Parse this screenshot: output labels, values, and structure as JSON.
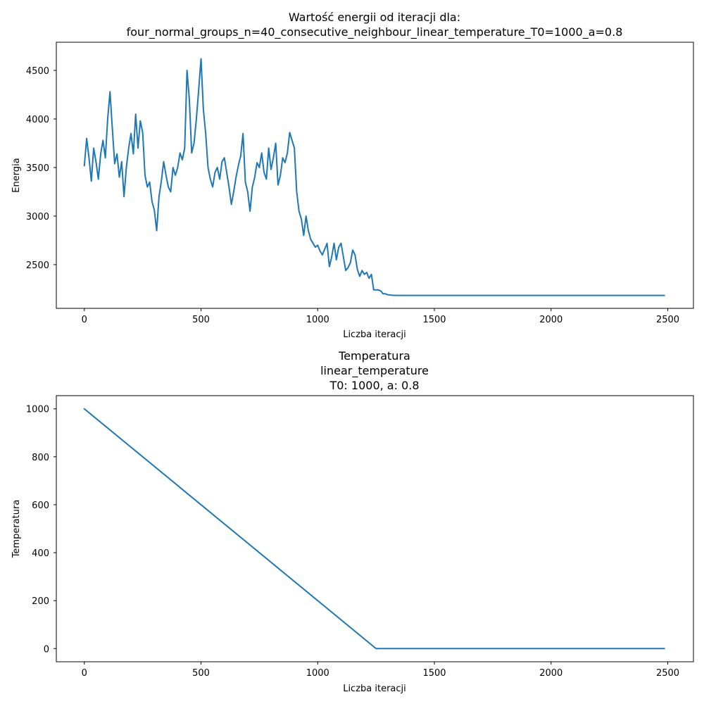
{
  "chart_data": [
    {
      "type": "line",
      "title_lines": [
        "Wartość energii od iteracji dla:",
        "four_normal_groups_n=40_consecutive_neighbour_linear_temperature_T0=1000_a=0.8"
      ],
      "xlabel": "Liczba iteracji",
      "ylabel": "Energia",
      "xlim": [
        -120,
        2610
      ],
      "ylim": [
        2050,
        4790
      ],
      "xticks": [
        0,
        500,
        1000,
        1500,
        2000,
        2500
      ],
      "yticks": [
        2500,
        3000,
        3500,
        4000,
        4500
      ],
      "grid": false,
      "color": "#1f77b4",
      "series": [
        {
          "x": [
            0,
            10,
            20,
            30,
            40,
            50,
            60,
            70,
            80,
            90,
            100,
            110,
            120,
            130,
            140,
            150,
            160,
            170,
            180,
            190,
            200,
            210,
            220,
            230,
            240,
            250,
            260,
            270,
            280,
            290,
            300,
            310,
            320,
            330,
            340,
            350,
            360,
            370,
            380,
            390,
            400,
            410,
            420,
            430,
            440,
            450,
            460,
            470,
            480,
            490,
            500,
            510,
            520,
            530,
            540,
            550,
            560,
            570,
            580,
            590,
            600,
            610,
            620,
            630,
            640,
            650,
            660,
            670,
            680,
            690,
            700,
            710,
            720,
            730,
            740,
            750,
            760,
            770,
            780,
            790,
            800,
            810,
            820,
            830,
            840,
            850,
            860,
            870,
            880,
            890,
            900,
            910,
            920,
            930,
            940,
            950,
            960,
            970,
            980,
            990,
            1000,
            1010,
            1020,
            1030,
            1040,
            1050,
            1060,
            1070,
            1080,
            1090,
            1100,
            1110,
            1120,
            1130,
            1140,
            1150,
            1160,
            1170,
            1180,
            1190,
            1200,
            1210,
            1220,
            1230,
            1240,
            1250,
            1260,
            1270,
            1280,
            1290,
            1300,
            1320,
            1340,
            1400,
            1500,
            1600,
            1700,
            1800,
            1900,
            2000,
            2100,
            2200,
            2300,
            2400,
            2485
          ],
          "y": [
            3520,
            3800,
            3600,
            3360,
            3700,
            3560,
            3380,
            3640,
            3780,
            3600,
            4000,
            4280,
            3900,
            3540,
            3640,
            3400,
            3560,
            3200,
            3500,
            3700,
            3850,
            3640,
            4050,
            3700,
            3980,
            3860,
            3420,
            3300,
            3350,
            3150,
            3060,
            2850,
            3200,
            3360,
            3560,
            3420,
            3300,
            3250,
            3500,
            3420,
            3500,
            3650,
            3580,
            3700,
            4500,
            4200,
            3650,
            3750,
            4000,
            4300,
            4620,
            4100,
            3850,
            3500,
            3380,
            3300,
            3450,
            3500,
            3380,
            3560,
            3600,
            3450,
            3300,
            3120,
            3250,
            3400,
            3520,
            3620,
            3850,
            3350,
            3250,
            3050,
            3300,
            3400,
            3550,
            3500,
            3650,
            3450,
            3380,
            3700,
            3480,
            3600,
            3750,
            3320,
            3420,
            3600,
            3550,
            3650,
            3860,
            3780,
            3700,
            3250,
            3050,
            2970,
            2800,
            3000,
            2850,
            2760,
            2720,
            2680,
            2700,
            2640,
            2600,
            2660,
            2720,
            2480,
            2580,
            2720,
            2550,
            2680,
            2720,
            2580,
            2440,
            2470,
            2520,
            2650,
            2600,
            2450,
            2380,
            2440,
            2400,
            2420,
            2360,
            2400,
            2240,
            2240,
            2240,
            2230,
            2200,
            2200,
            2190,
            2185,
            2183,
            2183,
            2183,
            2183,
            2183,
            2183,
            2183,
            2183,
            2183,
            2183,
            2183,
            2183,
            2183
          ]
        }
      ]
    },
    {
      "type": "line",
      "title_lines": [
        "Temperatura",
        "linear_temperature",
        "T0: 1000, a: 0.8"
      ],
      "xlabel": "Liczba iteracji",
      "ylabel": "Temperatura",
      "xlim": [
        -120,
        2610
      ],
      "ylim": [
        -55,
        1055
      ],
      "xticks": [
        0,
        500,
        1000,
        1500,
        2000,
        2500
      ],
      "yticks": [
        0,
        200,
        400,
        600,
        800,
        1000
      ],
      "grid": false,
      "color": "#1f77b4",
      "series": [
        {
          "x": [
            0,
            1250,
            2485
          ],
          "y": [
            1000,
            0,
            0
          ]
        }
      ]
    }
  ]
}
